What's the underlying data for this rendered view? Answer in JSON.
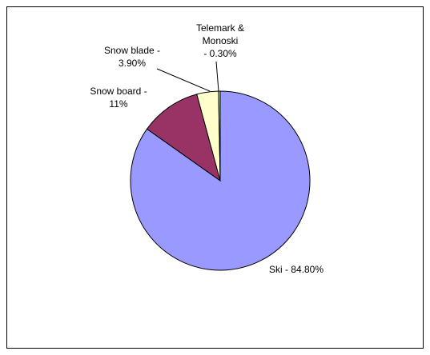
{
  "chart_data": {
    "type": "pie",
    "values": [
      84.8,
      11,
      3.9,
      0.3
    ],
    "value_labels": [
      [
        "Ski - 84.80%"
      ],
      [
        "Snow board -",
        "11%"
      ],
      [
        "Snow blade -",
        "3.90%"
      ],
      [
        "Telemark &",
        "Monoski",
        "- 0.30%"
      ]
    ],
    "colors": [
      "#9999ff",
      "#993366",
      "#ffffcc",
      "#ccffcc"
    ]
  }
}
